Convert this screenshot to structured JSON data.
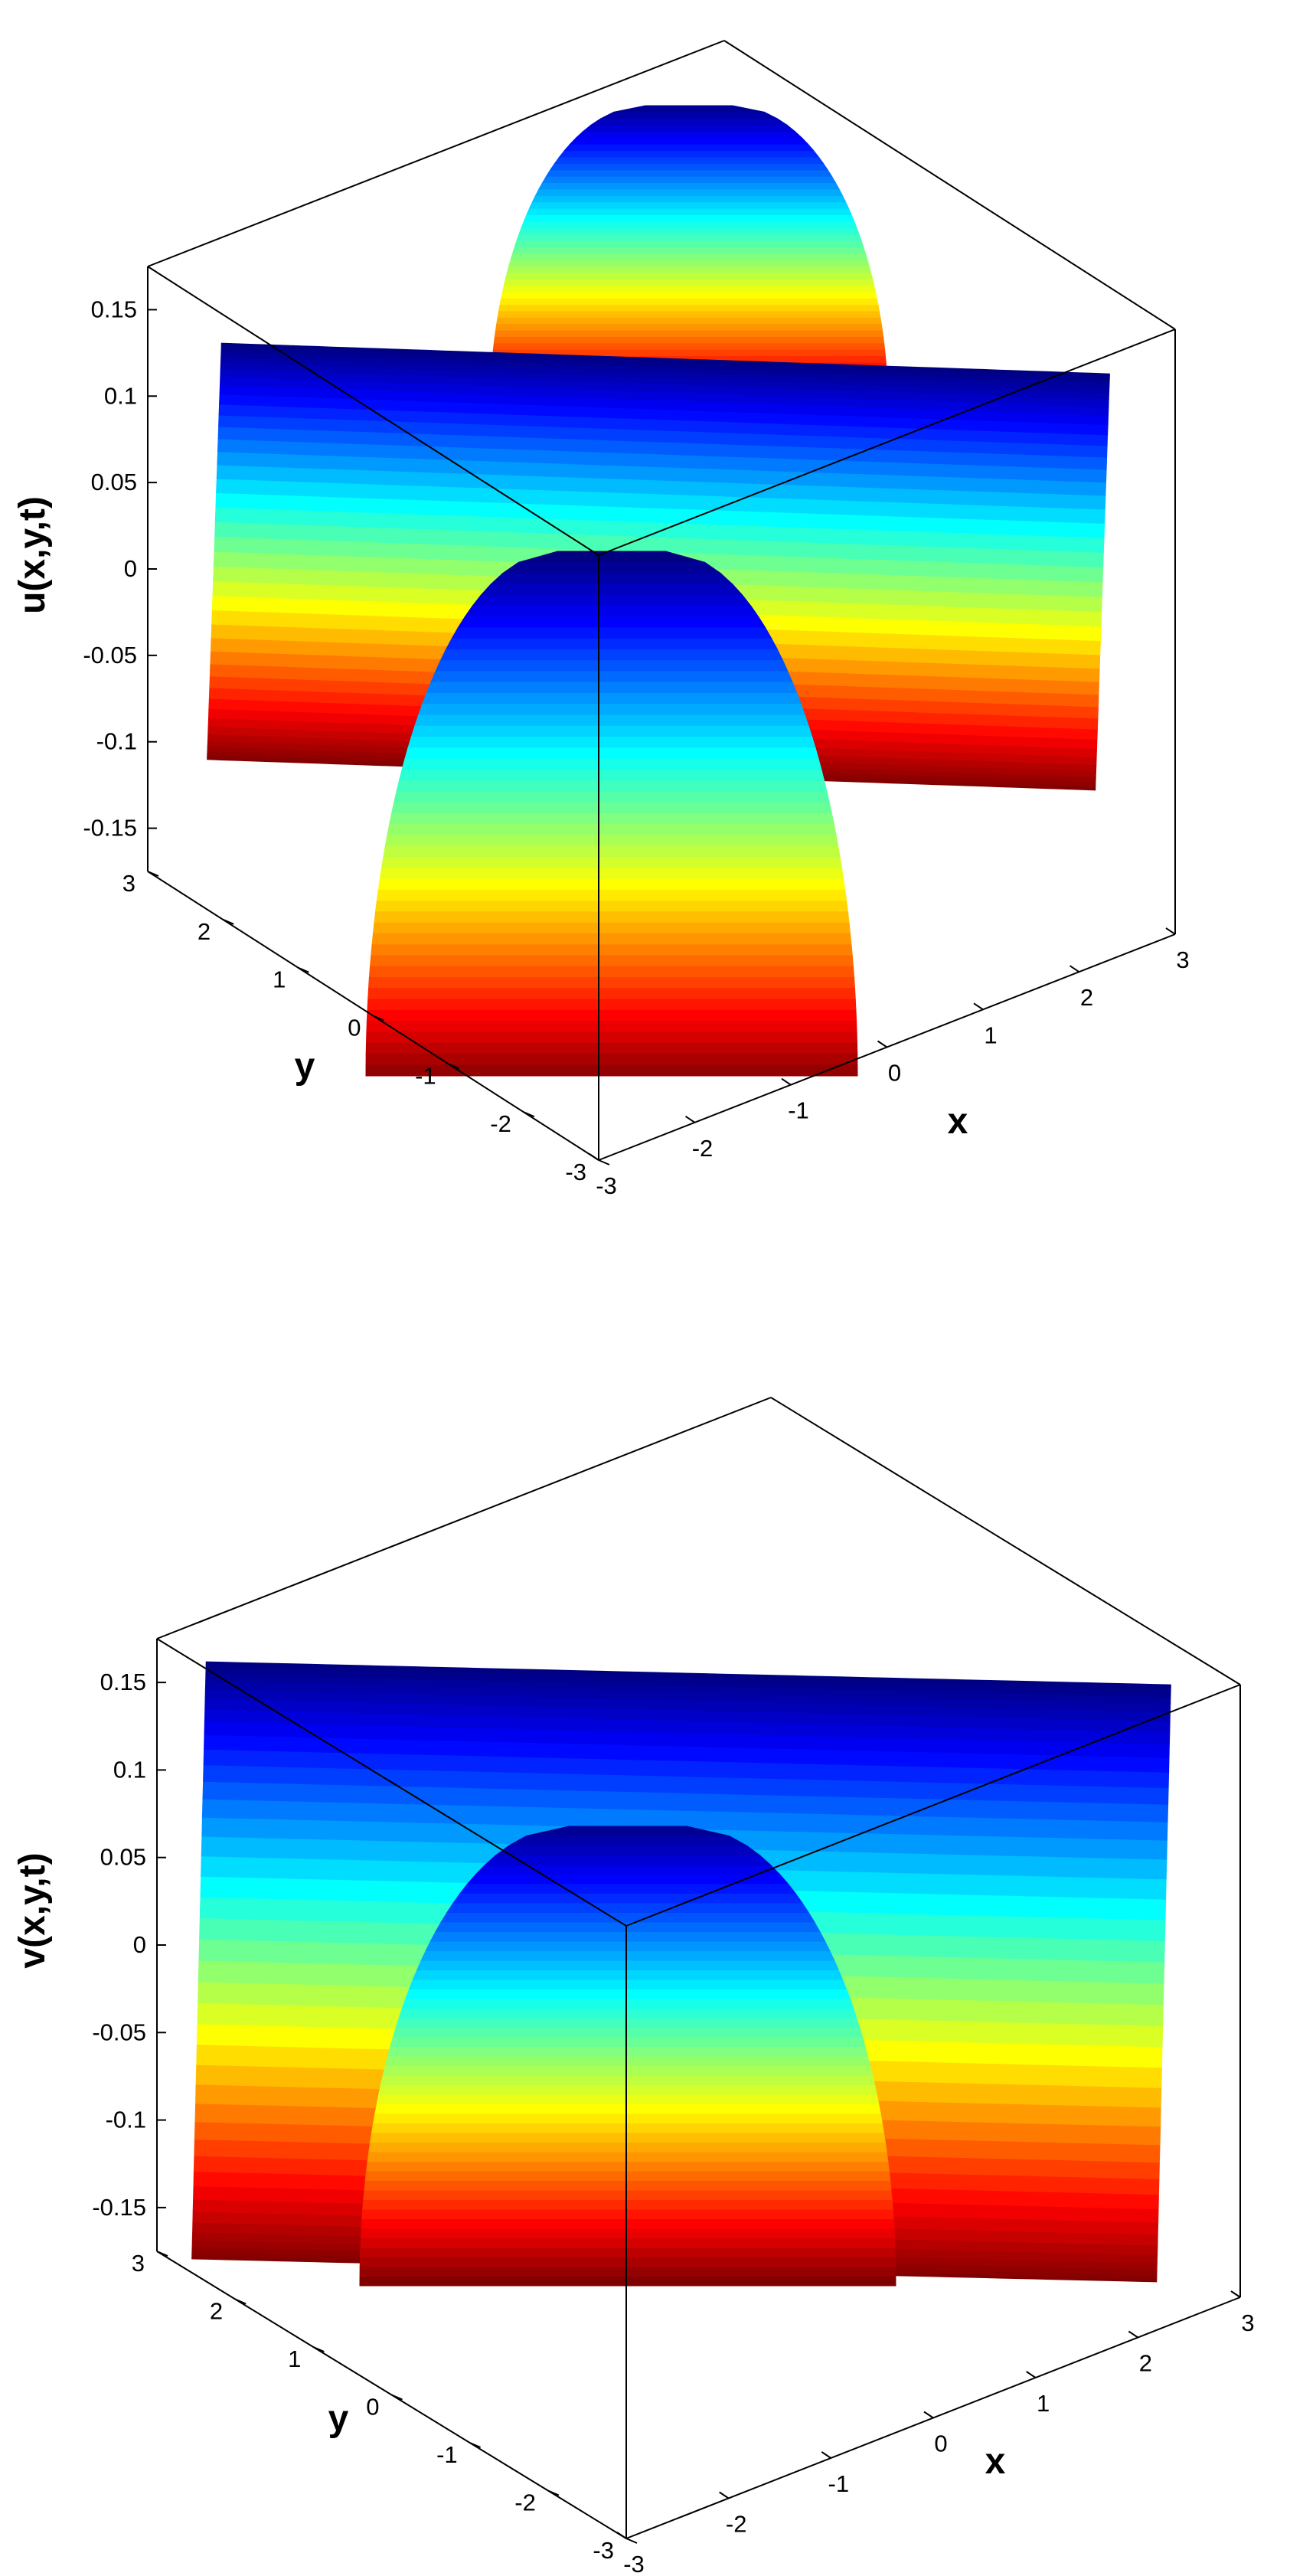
{
  "chart_data": [
    {
      "type": "surface",
      "zlabel": "u(x,y,t)",
      "xlabel": "x",
      "ylabel": "y",
      "xlim": [
        -3,
        3
      ],
      "ylim": [
        -3,
        3
      ],
      "zlim": [
        -0.175,
        0.175
      ],
      "xticks": [
        "-3",
        "-2",
        "-1",
        "0",
        "1",
        "2",
        "3"
      ],
      "yticks": [
        "-3",
        "-2",
        "-1",
        "0",
        "1",
        "2",
        "3"
      ],
      "zticks": [
        "-0.15",
        "-0.1",
        "-0.05",
        "0",
        "0.05",
        "0.1",
        "0.15"
      ],
      "amplitude": 0.16,
      "colormap": "jet",
      "box": true,
      "grid": false,
      "legend": "none"
    },
    {
      "type": "surface",
      "zlabel": "v(x,y,t)",
      "xlabel": "x",
      "ylabel": "y",
      "xlim": [
        -3,
        3
      ],
      "ylim": [
        -3,
        3
      ],
      "zlim": [
        -0.175,
        0.175
      ],
      "xticks": [
        "-3",
        "-2",
        "-1",
        "0",
        "1",
        "2",
        "3"
      ],
      "yticks": [
        "-3",
        "-2",
        "-1",
        "0",
        "1",
        "2",
        "3"
      ],
      "zticks": [
        "-0.15",
        "-0.1",
        "-0.05",
        "0",
        "0.05",
        "0.1",
        "0.15"
      ],
      "amplitude": 0.16,
      "colormap": "jet",
      "box": true,
      "grid": false,
      "legend": "none"
    }
  ]
}
